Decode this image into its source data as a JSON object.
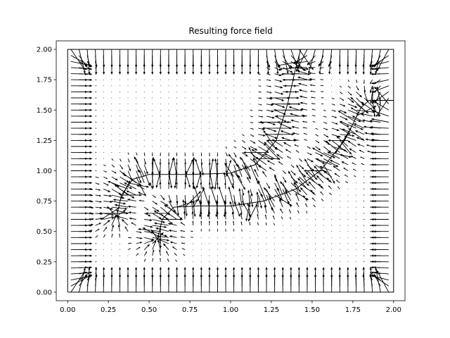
{
  "chart_data": {
    "type": "quiver",
    "title": "Resulting force field",
    "xlabel": "",
    "ylabel": "",
    "xlim": [
      -0.07,
      2.07
    ],
    "ylim": [
      -0.07,
      2.07
    ],
    "x_ticks": [
      "0.00",
      "0.25",
      "0.50",
      "0.75",
      "1.00",
      "1.25",
      "1.50",
      "1.75",
      "2.00"
    ],
    "y_ticks": [
      "0.00",
      "0.25",
      "0.50",
      "0.75",
      "1.00",
      "1.25",
      "1.50",
      "1.75",
      "2.00"
    ],
    "x_tick_values": [
      0,
      0.25,
      0.5,
      0.75,
      1.0,
      1.25,
      1.5,
      1.75,
      2.0
    ],
    "y_tick_values": [
      0,
      0.25,
      0.5,
      0.75,
      1.0,
      1.25,
      1.5,
      1.75,
      2.0
    ],
    "grid": false,
    "legend": "none",
    "boundary": [
      [
        0,
        0
      ],
      [
        2,
        0
      ],
      [
        2,
        2
      ],
      [
        0,
        2
      ],
      [
        0,
        0
      ]
    ],
    "paths": [
      [
        [
          0.3,
          0.62
        ],
        [
          0.33,
          0.8
        ],
        [
          0.4,
          0.93
        ],
        [
          0.5,
          0.97
        ],
        [
          0.75,
          0.97
        ],
        [
          1.0,
          0.98
        ],
        [
          1.15,
          1.05
        ],
        [
          1.28,
          1.25
        ],
        [
          1.35,
          1.55
        ],
        [
          1.4,
          1.85
        ],
        [
          1.43,
          2.0
        ]
      ],
      [
        [
          0.55,
          0.43
        ],
        [
          0.58,
          0.6
        ],
        [
          0.65,
          0.7
        ],
        [
          0.8,
          0.71
        ],
        [
          1.0,
          0.71
        ],
        [
          1.2,
          0.75
        ],
        [
          1.4,
          0.85
        ],
        [
          1.55,
          1.0
        ],
        [
          1.7,
          1.25
        ],
        [
          1.8,
          1.52
        ],
        [
          1.85,
          1.58
        ],
        [
          2.0,
          1.58
        ]
      ]
    ],
    "field": "vectors point toward the paths and inward from the boundary walls; magnitude largest near walls and path corridors"
  }
}
